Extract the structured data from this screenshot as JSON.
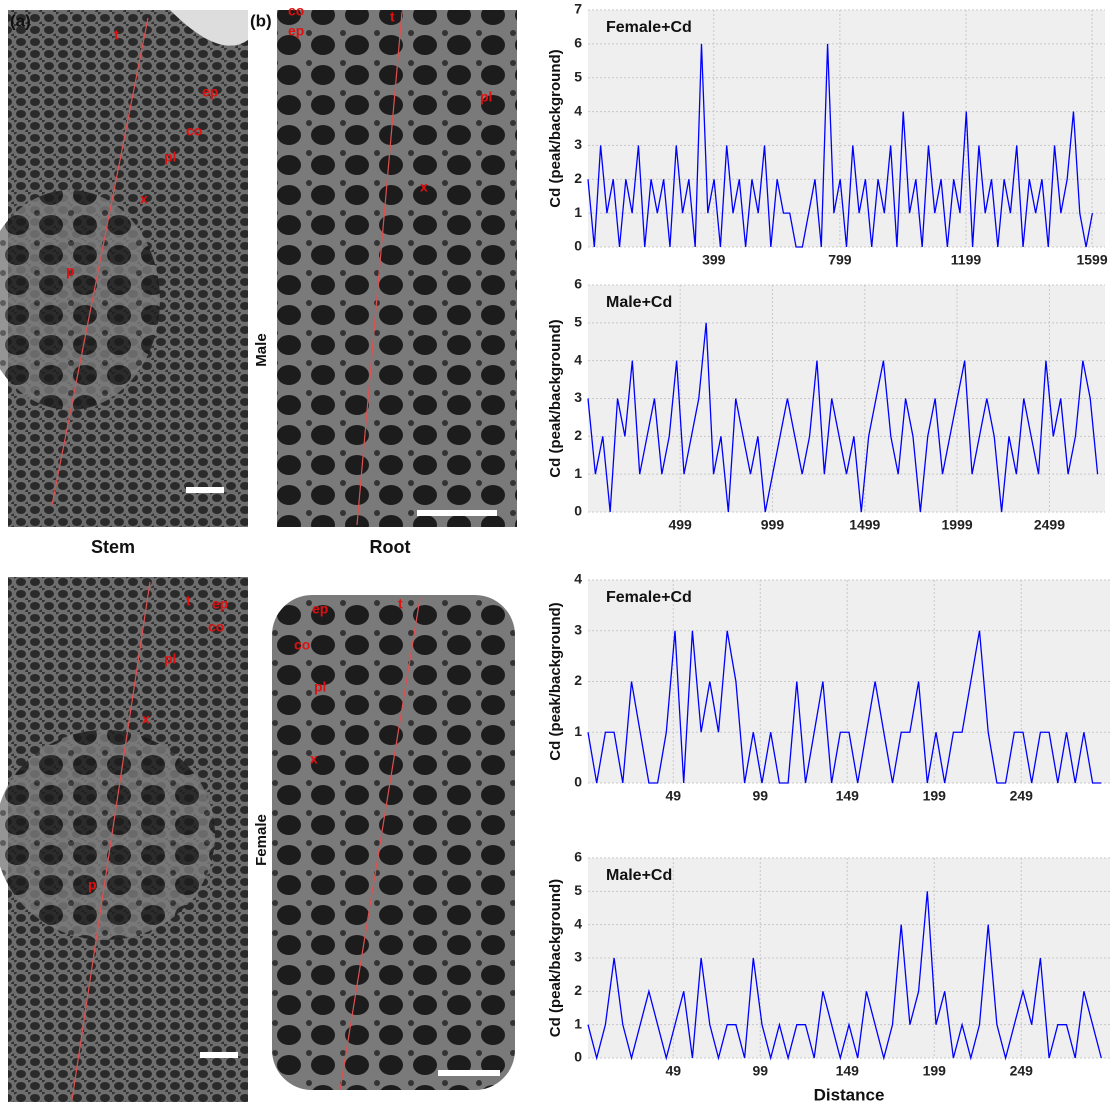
{
  "figure": {
    "panel_labels": [
      "(a)",
      "(b)"
    ],
    "column_labels": [
      "Stem",
      "Root"
    ],
    "row_labels": [
      "Male",
      "Female"
    ],
    "images": [
      {
        "labels": [
          "t",
          "ep",
          "co",
          "pl",
          "x",
          "p"
        ]
      },
      {
        "labels": [
          "ep",
          "co",
          "t",
          "pl",
          "x"
        ]
      },
      {
        "labels": [
          "t",
          "ep",
          "co",
          "pl",
          "x",
          "p"
        ]
      },
      {
        "labels": [
          "ep",
          "t",
          "co",
          "pl",
          "x"
        ]
      }
    ]
  },
  "chart_data": [
    {
      "type": "line",
      "title": "Female+Cd",
      "y_label": "Cd (peak/background)",
      "color": "#0000ff",
      "grid": true,
      "x": [
        0,
        20,
        40,
        60,
        80,
        100,
        120,
        140,
        160,
        180,
        200,
        220,
        240,
        260,
        280,
        300,
        320,
        340,
        360,
        380,
        400,
        420,
        440,
        460,
        480,
        500,
        520,
        540,
        560,
        580,
        600,
        620,
        640,
        660,
        680,
        700,
        720,
        740,
        760,
        780,
        800,
        820,
        840,
        860,
        880,
        900,
        920,
        940,
        960,
        980,
        1000,
        1020,
        1040,
        1060,
        1080,
        1100,
        1120,
        1140,
        1160,
        1180,
        1200,
        1220,
        1240,
        1260,
        1280,
        1300,
        1320,
        1340,
        1360,
        1380,
        1400,
        1420,
        1440,
        1460,
        1480,
        1500,
        1520,
        1540,
        1560,
        1580,
        1600
      ],
      "values": [
        2,
        0,
        3,
        1,
        2,
        0,
        2,
        1,
        3,
        0,
        2,
        1,
        2,
        0,
        3,
        1,
        2,
        0,
        6,
        1,
        2,
        0,
        3,
        1,
        2,
        0,
        2,
        1,
        3,
        0,
        2,
        1,
        1,
        0,
        0,
        1,
        2,
        0,
        6,
        1,
        2,
        0,
        3,
        1,
        2,
        0,
        2,
        1,
        3,
        0,
        4,
        1,
        2,
        0,
        3,
        1,
        2,
        0,
        2,
        1,
        4,
        0,
        3,
        1,
        2,
        0,
        2,
        1,
        3,
        0,
        2,
        1,
        2,
        0,
        3,
        1,
        2,
        4,
        1,
        0,
        1
      ],
      "xlim": [
        0,
        1640
      ],
      "ylim": [
        0,
        7
      ],
      "xticks": [
        399,
        799,
        1199,
        1599
      ],
      "yticks": [
        0,
        1,
        2,
        3,
        4,
        5,
        6,
        7
      ]
    },
    {
      "type": "line",
      "title": "Male+Cd",
      "y_label": "Cd (peak/background)",
      "color": "#0000ff",
      "grid": true,
      "x": [
        0,
        40,
        80,
        120,
        160,
        200,
        240,
        280,
        320,
        360,
        400,
        440,
        480,
        520,
        560,
        600,
        640,
        680,
        720,
        760,
        800,
        840,
        880,
        920,
        960,
        1000,
        1040,
        1080,
        1120,
        1160,
        1200,
        1240,
        1280,
        1320,
        1360,
        1400,
        1440,
        1480,
        1520,
        1560,
        1600,
        1640,
        1680,
        1720,
        1760,
        1800,
        1840,
        1880,
        1920,
        1960,
        2000,
        2040,
        2080,
        2120,
        2160,
        2200,
        2240,
        2280,
        2320,
        2360,
        2400,
        2440,
        2480,
        2520,
        2560,
        2600,
        2640,
        2680,
        2720,
        2760
      ],
      "values": [
        3,
        1,
        2,
        0,
        3,
        2,
        4,
        1,
        2,
        3,
        1,
        2,
        4,
        1,
        2,
        3,
        5,
        1,
        2,
        0,
        3,
        2,
        1,
        2,
        0,
        1,
        2,
        3,
        2,
        1,
        2,
        4,
        1,
        3,
        2,
        1,
        2,
        0,
        2,
        3,
        4,
        2,
        1,
        3,
        2,
        0,
        2,
        3,
        1,
        2,
        3,
        4,
        1,
        2,
        3,
        2,
        0,
        2,
        1,
        3,
        2,
        1,
        4,
        2,
        3,
        1,
        2,
        4,
        3,
        1
      ],
      "xlim": [
        0,
        2800
      ],
      "ylim": [
        0,
        6
      ],
      "xticks": [
        499,
        999,
        1499,
        1999,
        2499
      ],
      "yticks": [
        0,
        1,
        2,
        3,
        4,
        5,
        6
      ]
    },
    {
      "type": "line",
      "title": "Female+Cd",
      "y_label": "Cd (peak/background)",
      "color": "#0000ff",
      "grid": true,
      "x": [
        0,
        5,
        10,
        15,
        20,
        25,
        30,
        35,
        40,
        45,
        50,
        55,
        60,
        65,
        70,
        75,
        80,
        85,
        90,
        95,
        100,
        105,
        110,
        115,
        120,
        125,
        130,
        135,
        140,
        145,
        150,
        155,
        160,
        165,
        170,
        175,
        180,
        185,
        190,
        195,
        200,
        205,
        210,
        215,
        220,
        225,
        230,
        235,
        240,
        245,
        250,
        255,
        260,
        265,
        270,
        275,
        280,
        285,
        290,
        295
      ],
      "values": [
        1,
        0,
        1,
        1,
        0,
        2,
        1,
        0,
        0,
        1,
        3,
        0,
        3,
        1,
        2,
        1,
        3,
        2,
        0,
        1,
        0,
        1,
        0,
        0,
        2,
        0,
        1,
        2,
        0,
        1,
        1,
        0,
        1,
        2,
        1,
        0,
        1,
        1,
        2,
        0,
        1,
        0,
        1,
        1,
        2,
        3,
        1,
        0,
        0,
        1,
        1,
        0,
        1,
        1,
        0,
        1,
        0,
        1,
        0,
        0
      ],
      "xlim": [
        0,
        300
      ],
      "ylim": [
        0,
        4
      ],
      "xticks": [
        49,
        99,
        149,
        199,
        249
      ],
      "yticks": [
        0,
        1,
        2,
        3,
        4
      ]
    },
    {
      "type": "line",
      "title": "Male+Cd",
      "y_label": "Cd (peak/background)",
      "x_label": "Distance",
      "color": "#0000ff",
      "grid": true,
      "x": [
        0,
        5,
        10,
        15,
        20,
        25,
        30,
        35,
        40,
        45,
        50,
        55,
        60,
        65,
        70,
        75,
        80,
        85,
        90,
        95,
        100,
        105,
        110,
        115,
        120,
        125,
        130,
        135,
        140,
        145,
        150,
        155,
        160,
        165,
        170,
        175,
        180,
        185,
        190,
        195,
        200,
        205,
        210,
        215,
        220,
        225,
        230,
        235,
        240,
        245,
        250,
        255,
        260,
        265,
        270,
        275,
        280,
        285,
        290,
        295
      ],
      "values": [
        1,
        0,
        1,
        3,
        1,
        0,
        1,
        2,
        1,
        0,
        1,
        2,
        0,
        3,
        1,
        0,
        1,
        1,
        0,
        3,
        1,
        0,
        1,
        0,
        1,
        1,
        0,
        2,
        1,
        0,
        1,
        0,
        2,
        1,
        0,
        1,
        4,
        1,
        2,
        5,
        1,
        2,
        0,
        1,
        0,
        1,
        4,
        1,
        0,
        1,
        2,
        1,
        3,
        0,
        1,
        1,
        0,
        2,
        1,
        0
      ],
      "xlim": [
        0,
        300
      ],
      "ylim": [
        0,
        6
      ],
      "xticks": [
        49,
        99,
        149,
        199,
        249
      ],
      "yticks": [
        0,
        1,
        2,
        3,
        4,
        5,
        6
      ]
    }
  ]
}
